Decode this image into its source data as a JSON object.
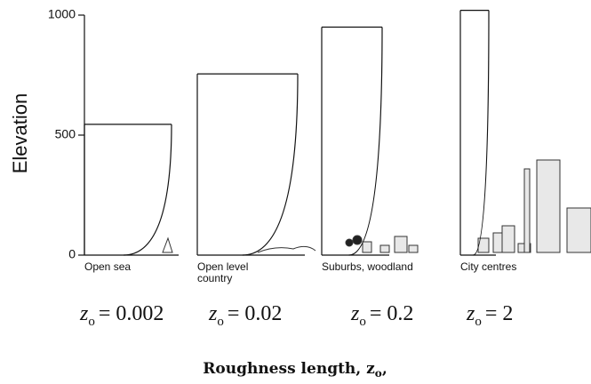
{
  "chart_data": {
    "type": "profile",
    "y_label": "Elevation",
    "ylim": [
      0,
      1000
    ],
    "yticks": [
      0,
      500,
      1000
    ],
    "x_label": "Roughness length, z",
    "x_label_sub": "o",
    "x_label_end": ",",
    "z_symbol": "z",
    "z_subscript": "o",
    "color": "#111111",
    "categories": [
      [
        "Open sea"
      ],
      [
        "Open level",
        "country"
      ],
      [
        "Suburbs, woodland"
      ],
      [
        "City centres"
      ]
    ],
    "z0_labels": [
      "= 0.002",
      "= 0.02",
      "= 0.2",
      "= 2"
    ],
    "values": [
      545,
      755,
      950,
      1020
    ]
  }
}
